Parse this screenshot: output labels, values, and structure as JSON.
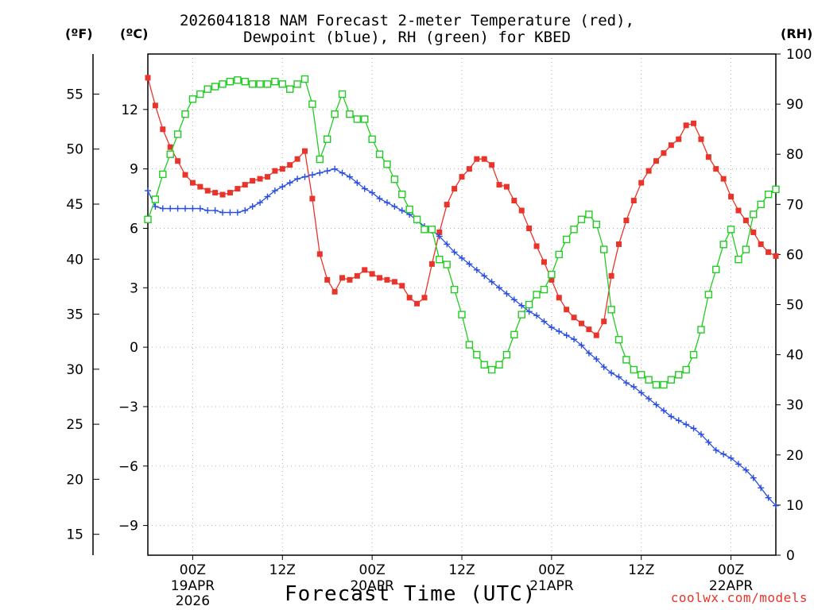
{
  "chart_data": {
    "type": "line",
    "title_line1": "2026041818 NAM Forecast 2-meter Temperature (red),",
    "title_line2": "Dewpoint (blue), RH (green) for KBED",
    "left_outer_unit": "(ºF)",
    "left_inner_unit": "(ºC)",
    "right_unit": "(RH)",
    "xlabel": "Forecast Time (UTC)",
    "credit": "coolwx.com/models",
    "x_range_hours": [
      0,
      84
    ],
    "x_ticks": [
      {
        "hour": 6,
        "label": "00Z",
        "sub1": "19APR",
        "sub2": "2026"
      },
      {
        "hour": 18,
        "label": "12Z",
        "sub1": "",
        "sub2": ""
      },
      {
        "hour": 30,
        "label": "00Z",
        "sub1": "20APR",
        "sub2": ""
      },
      {
        "hour": 42,
        "label": "12Z",
        "sub1": "",
        "sub2": ""
      },
      {
        "hour": 54,
        "label": "00Z",
        "sub1": "21APR",
        "sub2": ""
      },
      {
        "hour": 66,
        "label": "12Z",
        "sub1": "",
        "sub2": ""
      },
      {
        "hour": 78,
        "label": "00Z",
        "sub1": "22APR",
        "sub2": ""
      }
    ],
    "celsius_range": [
      -10.5,
      14.8
    ],
    "celsius_ticks": [
      12,
      9,
      6,
      3,
      0,
      -3,
      -6,
      -9
    ],
    "celsius_tick_labels": [
      "12",
      "9",
      "6",
      "3",
      "0",
      "−3",
      "−6",
      "−9"
    ],
    "fahrenheit_ticks": [
      55,
      50,
      45,
      40,
      35,
      30,
      25,
      20,
      15
    ],
    "fahrenheit_tick_labels": [
      "55",
      "50",
      "45",
      "40",
      "35",
      "30",
      "25",
      "20",
      "15"
    ],
    "rh_range": [
      0,
      100
    ],
    "rh_ticks": [
      100,
      90,
      80,
      70,
      60,
      50,
      40,
      30,
      20,
      10,
      0
    ],
    "rh_tick_labels": [
      "100",
      "90",
      "80",
      "70",
      "60",
      "50",
      "40",
      "30",
      "20",
      "10",
      "0"
    ],
    "colors": {
      "temperature": "#e8342a",
      "dewpoint": "#2a4fe0",
      "rh": "#22cc22",
      "grid": "#b0b0b0"
    },
    "series": [
      {
        "name": "Temperature (°C)",
        "marker": "filled-square",
        "hours": [
          0,
          1,
          2,
          3,
          4,
          5,
          6,
          7,
          8,
          9,
          10,
          11,
          12,
          13,
          14,
          15,
          16,
          17,
          18,
          19,
          20,
          21,
          22,
          23,
          24,
          25,
          26,
          27,
          28,
          29,
          30,
          31,
          32,
          33,
          34,
          35,
          36,
          37,
          38,
          39,
          40,
          41,
          42,
          43,
          44,
          45,
          46,
          47,
          48,
          49,
          50,
          51,
          52,
          53,
          54,
          55,
          56,
          57,
          58,
          59,
          60,
          61,
          62,
          63,
          64,
          65,
          66,
          67,
          68,
          69,
          70,
          71,
          72,
          73,
          74,
          75,
          76,
          77,
          78,
          79,
          80,
          81,
          82,
          83,
          84
        ],
        "values": [
          13.6,
          12.2,
          11.0,
          10.1,
          9.4,
          8.7,
          8.3,
          8.1,
          7.9,
          7.8,
          7.7,
          7.8,
          8.0,
          8.2,
          8.4,
          8.5,
          8.6,
          8.9,
          9.0,
          9.2,
          9.5,
          9.9,
          7.5,
          4.7,
          3.4,
          2.8,
          3.5,
          3.4,
          3.6,
          3.9,
          3.7,
          3.5,
          3.4,
          3.3,
          3.1,
          2.5,
          2.2,
          2.5,
          4.2,
          5.8,
          7.2,
          8.0,
          8.6,
          9.0,
          9.5,
          9.5,
          9.2,
          8.2,
          8.1,
          7.4,
          6.9,
          6.0,
          5.1,
          4.3,
          3.4,
          2.5,
          1.9,
          1.5,
          1.2,
          0.9,
          0.6,
          1.3,
          3.6,
          5.2,
          6.4,
          7.4,
          8.3,
          8.9,
          9.4,
          9.8,
          10.2,
          10.5,
          11.2,
          11.3,
          10.5,
          9.6,
          9.0,
          8.5,
          7.6,
          6.9,
          6.4,
          5.8,
          5.2,
          4.8,
          4.6
        ]
      },
      {
        "name": "Dewpoint (°C)",
        "marker": "plus",
        "hours": [
          0,
          1,
          2,
          3,
          4,
          5,
          6,
          7,
          8,
          9,
          10,
          11,
          12,
          13,
          14,
          15,
          16,
          17,
          18,
          19,
          20,
          21,
          22,
          23,
          24,
          25,
          26,
          27,
          28,
          29,
          30,
          31,
          32,
          33,
          34,
          35,
          36,
          37,
          38,
          39,
          40,
          41,
          42,
          43,
          44,
          45,
          46,
          47,
          48,
          49,
          50,
          51,
          52,
          53,
          54,
          55,
          56,
          57,
          58,
          59,
          60,
          61,
          62,
          63,
          64,
          65,
          66,
          67,
          68,
          69,
          70,
          71,
          72,
          73,
          74,
          75,
          76,
          77,
          78,
          79,
          80,
          81,
          82,
          83,
          84
        ],
        "values": [
          7.9,
          7.1,
          7.0,
          7.0,
          7.0,
          7.0,
          7.0,
          7.0,
          6.9,
          6.9,
          6.8,
          6.8,
          6.8,
          6.9,
          7.1,
          7.3,
          7.6,
          7.9,
          8.1,
          8.3,
          8.5,
          8.6,
          8.7,
          8.8,
          8.9,
          9.0,
          8.8,
          8.6,
          8.3,
          8.0,
          7.8,
          7.5,
          7.3,
          7.1,
          6.9,
          6.7,
          6.4,
          6.1,
          5.9,
          5.6,
          5.2,
          4.8,
          4.5,
          4.2,
          3.9,
          3.6,
          3.3,
          3.0,
          2.7,
          2.4,
          2.1,
          1.8,
          1.6,
          1.3,
          1.0,
          0.8,
          0.6,
          0.4,
          0.1,
          -0.3,
          -0.6,
          -1.0,
          -1.3,
          -1.5,
          -1.8,
          -2.0,
          -2.3,
          -2.6,
          -2.9,
          -3.2,
          -3.5,
          -3.7,
          -3.9,
          -4.1,
          -4.4,
          -4.8,
          -5.2,
          -5.4,
          -5.6,
          -5.9,
          -6.2,
          -6.6,
          -7.1,
          -7.6,
          -8.0
        ]
      },
      {
        "name": "RH (%)",
        "marker": "open-square",
        "hours": [
          0,
          1,
          2,
          3,
          4,
          5,
          6,
          7,
          8,
          9,
          10,
          11,
          12,
          13,
          14,
          15,
          16,
          17,
          18,
          19,
          20,
          21,
          22,
          23,
          24,
          25,
          26,
          27,
          28,
          29,
          30,
          31,
          32,
          33,
          34,
          35,
          36,
          37,
          38,
          39,
          40,
          41,
          42,
          43,
          44,
          45,
          46,
          47,
          48,
          49,
          50,
          51,
          52,
          53,
          54,
          55,
          56,
          57,
          58,
          59,
          60,
          61,
          62,
          63,
          64,
          65,
          66,
          67,
          68,
          69,
          70,
          71,
          72,
          73,
          74,
          75,
          76,
          77,
          78,
          79,
          80,
          81,
          82,
          83,
          84
        ],
        "values": [
          67,
          71,
          76,
          80,
          84,
          88,
          91,
          92,
          93,
          93.5,
          94,
          94.5,
          94.8,
          94.5,
          94,
          94,
          94,
          94.5,
          94,
          93,
          94,
          95,
          90,
          79,
          83,
          88,
          92,
          88,
          87,
          87,
          83,
          80,
          78,
          75,
          72,
          69,
          67,
          65,
          65,
          59,
          58,
          53,
          48,
          42,
          40,
          38,
          37,
          38,
          40,
          44,
          48,
          50,
          52,
          53,
          56,
          60,
          63,
          65,
          67,
          68,
          66,
          61,
          49,
          43,
          39,
          37,
          36,
          35,
          34,
          34,
          35,
          36,
          37,
          40,
          45,
          52,
          57,
          62,
          65,
          59,
          61,
          68,
          70,
          72,
          73
        ]
      }
    ]
  }
}
